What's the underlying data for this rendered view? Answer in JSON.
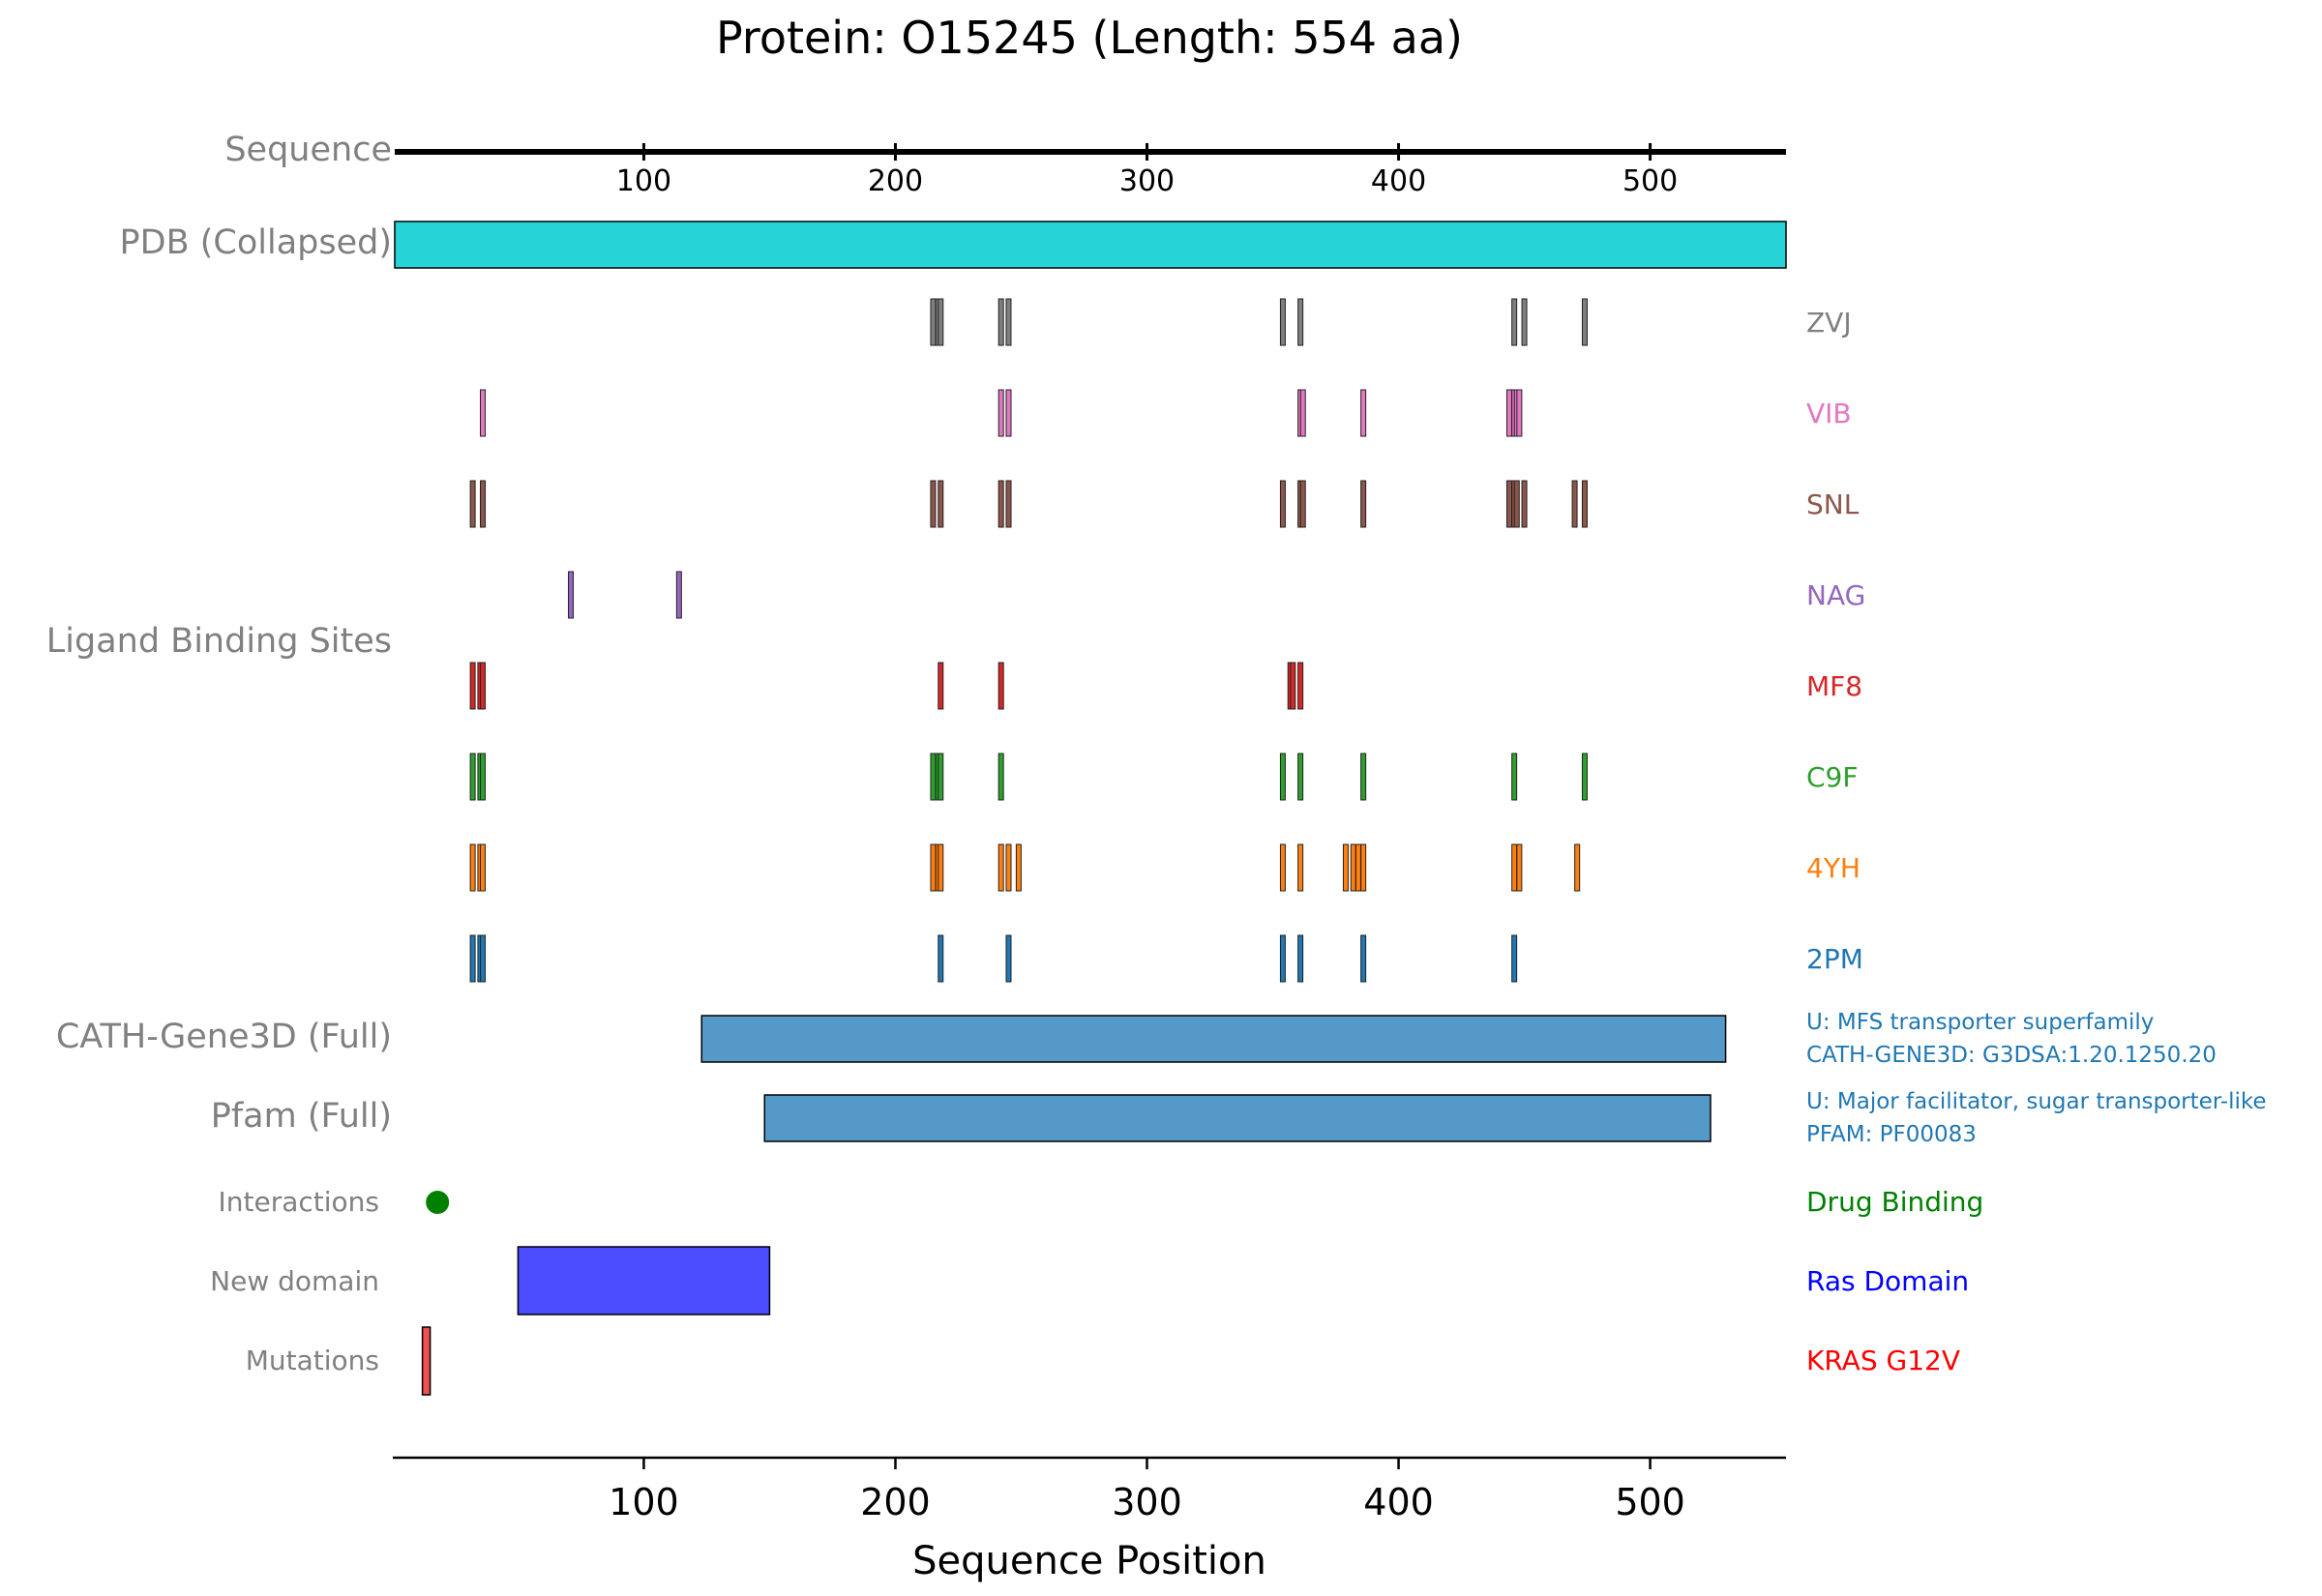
{
  "chart_data": {
    "type": "track",
    "title": "Protein: O15245 (Length: 554 aa)",
    "xlabel": "Sequence Position",
    "xlim": [
      1,
      554
    ],
    "xticks": [
      100,
      200,
      300,
      400,
      500
    ],
    "tracks": {
      "sequence": {
        "label": "Sequence"
      },
      "pdb": {
        "label": "PDB (Collapsed)",
        "start": 1,
        "end": 554,
        "color": "#26d4d8"
      },
      "ligand_group_label": "Ligand Binding Sites",
      "ligands": [
        {
          "name": "ZVJ",
          "color": "#7f7f7f",
          "positions": [
            215,
            217,
            218,
            242,
            245,
            354,
            361,
            446,
            450,
            474
          ]
        },
        {
          "name": "VIB",
          "color": "#e377c2",
          "positions": [
            36,
            242,
            245,
            361,
            362,
            386,
            444,
            446,
            447,
            448
          ]
        },
        {
          "name": "SNL",
          "color": "#8c564b",
          "positions": [
            32,
            36,
            215,
            218,
            242,
            245,
            354,
            361,
            362,
            386,
            444,
            446,
            447,
            450,
            470,
            474
          ]
        },
        {
          "name": "NAG",
          "color": "#9467bd",
          "positions": [
            71,
            114
          ]
        },
        {
          "name": "MF8",
          "color": "#d62728",
          "positions": [
            32,
            35,
            36,
            218,
            242,
            357,
            358,
            361
          ]
        },
        {
          "name": "C9F",
          "color": "#2ca02c",
          "positions": [
            32,
            35,
            36,
            215,
            217,
            218,
            242,
            354,
            361,
            386,
            446,
            474
          ]
        },
        {
          "name": "4YH",
          "color": "#ff7f0e",
          "positions": [
            32,
            35,
            36,
            215,
            217,
            218,
            242,
            245,
            249,
            354,
            361,
            379,
            382,
            384,
            386,
            446,
            448,
            471
          ]
        },
        {
          "name": "2PM",
          "color": "#1f77b4",
          "positions": [
            32,
            35,
            36,
            218,
            245,
            354,
            361,
            386,
            446
          ]
        }
      ],
      "cath": {
        "label": "CATH-Gene3D (Full)",
        "start": 123,
        "end": 530,
        "color": "#5599c8",
        "annotation_line1": "U: MFS transporter superfamily",
        "annotation_line2": "CATH-GENE3D: G3DSA:1.20.1250.20",
        "annotation_color": "#1f77b4"
      },
      "pfam": {
        "label": "Pfam (Full)",
        "start": 148,
        "end": 524,
        "color": "#5599c8",
        "annotation_line1": "U: Major facilitator, sugar transporter-like",
        "annotation_line2": "PFAM: PF00083",
        "annotation_color": "#1f77b4"
      },
      "interactions": {
        "label": "Interactions",
        "position": 18,
        "color": "#008000",
        "annotation": "Drug Binding"
      },
      "new_domain": {
        "label": "New domain",
        "start": 50,
        "end": 150,
        "color": "#4b4bff",
        "annotation": "Ras Domain",
        "annotation_color": "#0000ff"
      },
      "mutations": {
        "label": "Mutations",
        "start": 12,
        "end": 14,
        "color": "#f05050",
        "annotation": "KRAS G12V",
        "annotation_color": "#ff0000"
      }
    }
  }
}
